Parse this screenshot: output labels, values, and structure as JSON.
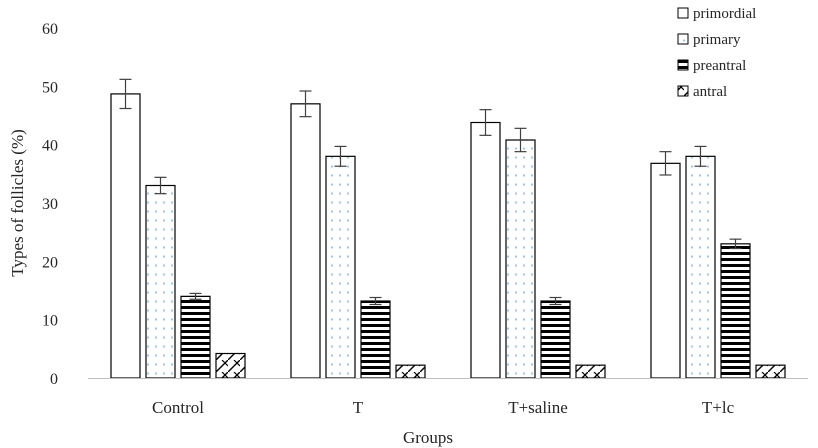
{
  "chart_data": {
    "type": "bar",
    "title": "",
    "xlabel": "Groups",
    "ylabel": "Types of follicles  (%)",
    "ylim": [
      0,
      60
    ],
    "yticks": [
      0,
      10,
      20,
      30,
      40,
      50,
      60
    ],
    "grid": false,
    "legend_position": "top-right",
    "categories": [
      "Control",
      "T",
      "T+saline",
      "T+lc"
    ],
    "series": [
      {
        "name": "primordial",
        "pattern": "plain",
        "values": [
          48.7,
          47.0,
          43.8,
          36.8
        ],
        "errors": [
          2.5,
          2.2,
          2.2,
          2.0
        ]
      },
      {
        "name": "primary",
        "pattern": "dots",
        "values": [
          33.0,
          38.0,
          40.8,
          38.0
        ],
        "errors": [
          1.4,
          1.7,
          2.0,
          1.7
        ]
      },
      {
        "name": "preantral",
        "pattern": "horizontal",
        "values": [
          14.0,
          13.2,
          13.2,
          23.0
        ],
        "errors": [
          0.5,
          0.6,
          0.6,
          0.8
        ]
      },
      {
        "name": "antral",
        "pattern": "diagonal",
        "values": [
          4.2,
          2.2,
          2.2,
          2.2
        ],
        "errors": [
          0,
          0,
          0,
          0
        ]
      }
    ],
    "colors": {
      "bar_stroke": "#000000",
      "axis": "#bfbfbf",
      "error_bar": "#404040",
      "dot": "#9dc3e6"
    }
  }
}
